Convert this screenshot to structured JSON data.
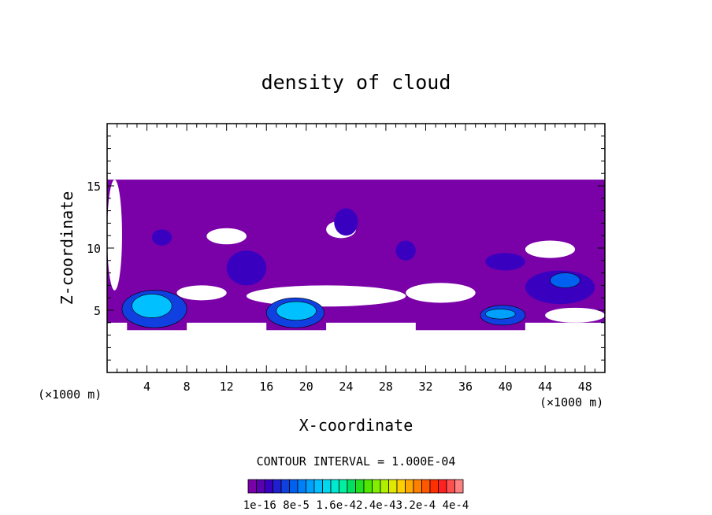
{
  "chart_data": {
    "type": "heatmap",
    "title": "density of cloud",
    "xlabel": "X-coordinate",
    "ylabel": "Z-coordinate",
    "x_unit": "(×1000 m)",
    "xlim": [
      0,
      50
    ],
    "ylim": [
      0,
      20
    ],
    "x_ticks": [
      4,
      8,
      12,
      16,
      20,
      24,
      28,
      32,
      36,
      40,
      44,
      48
    ],
    "x_tick_labels": [
      "4",
      "8",
      "12",
      "16",
      "20",
      "24",
      "28",
      "32",
      "36",
      "40",
      "44",
      "48"
    ],
    "y_ticks": [
      5,
      10,
      15
    ],
    "y_tick_labels": [
      "5",
      "10",
      "15"
    ],
    "contour_interval_text": "CONTOUR INTERVAL = 1.000E-04",
    "colorbar": {
      "label_text": "1e-16 8e-5 1.6e-42.4e-43.2e-4 4e-4",
      "colors": [
        "#7a00a8",
        "#5a00b0",
        "#3a00c0",
        "#2020d0",
        "#1040e0",
        "#0060f0",
        "#0080f8",
        "#00a0ff",
        "#00c0ff",
        "#00d8f0",
        "#00e8d0",
        "#00f0a0",
        "#00e060",
        "#20e020",
        "#50e800",
        "#80f000",
        "#b0f000",
        "#e0e800",
        "#ffd000",
        "#ffa800",
        "#ff8000",
        "#ff5800",
        "#ff3000",
        "#ff2020",
        "#ff5050",
        "#ff8080"
      ]
    },
    "cloud_regions": [
      {
        "level": 0,
        "x": [
          0.0,
          50.0
        ],
        "z": [
          4.0,
          15.5
        ]
      },
      {
        "level": 0,
        "x": [
          2.0,
          8.0
        ],
        "z": [
          3.4,
          6.0
        ]
      },
      {
        "level": 0,
        "x": [
          16.0,
          22.0
        ],
        "z": [
          3.4,
          6.0
        ]
      },
      {
        "level": 0,
        "x": [
          31.0,
          42.0
        ],
        "z": [
          3.4,
          4.6
        ]
      },
      {
        "level": 2,
        "x": [
          4.5,
          6.5
        ],
        "z": [
          10.2,
          11.5
        ]
      },
      {
        "level": 2,
        "x": [
          12.0,
          16.0
        ],
        "z": [
          7.0,
          9.8
        ]
      },
      {
        "level": 2,
        "x": [
          22.8,
          25.2
        ],
        "z": [
          11.0,
          13.2
        ]
      },
      {
        "level": 2,
        "x": [
          29.0,
          31.0
        ],
        "z": [
          9.0,
          10.6
        ]
      },
      {
        "level": 2,
        "x": [
          38.0,
          42.0
        ],
        "z": [
          8.2,
          9.6
        ]
      },
      {
        "level": 2,
        "x": [
          42.0,
          49.0
        ],
        "z": [
          5.5,
          8.2
        ]
      },
      {
        "level": 4,
        "x": [
          1.5,
          8.0
        ],
        "z": [
          3.6,
          6.6
        ]
      },
      {
        "level": 4,
        "x": [
          16.0,
          21.8
        ],
        "z": [
          3.6,
          6.0
        ]
      },
      {
        "level": 4,
        "x": [
          37.5,
          42.0
        ],
        "z": [
          3.8,
          5.4
        ]
      },
      {
        "level": 5,
        "x": [
          44.5,
          47.5
        ],
        "z": [
          6.8,
          8.0
        ]
      },
      {
        "level": 8,
        "x": [
          2.5,
          6.5
        ],
        "z": [
          4.4,
          6.3
        ]
      },
      {
        "level": 8,
        "x": [
          17.0,
          21.0
        ],
        "z": [
          4.2,
          5.7
        ]
      },
      {
        "level": 7,
        "x": [
          38.0,
          41.0
        ],
        "z": [
          4.3,
          5.1
        ]
      }
    ],
    "gaps": [
      {
        "x": [
          0.0,
          1.5
        ],
        "z": [
          6.6,
          15.5
        ]
      },
      {
        "x": [
          10.0,
          14.0
        ],
        "z": [
          10.3,
          11.6
        ]
      },
      {
        "x": [
          14.0,
          30.0
        ],
        "z": [
          5.3,
          7.0
        ]
      },
      {
        "x": [
          30.0,
          37.0
        ],
        "z": [
          5.6,
          7.2
        ]
      },
      {
        "x": [
          22.0,
          25.0
        ],
        "z": [
          10.8,
          12.2
        ]
      },
      {
        "x": [
          42.0,
          47.0
        ],
        "z": [
          9.2,
          10.6
        ]
      },
      {
        "x": [
          7.0,
          12.0
        ],
        "z": [
          5.8,
          7.0
        ]
      },
      {
        "x": [
          44.0,
          50.0
        ],
        "z": [
          4.0,
          5.2
        ]
      }
    ]
  }
}
